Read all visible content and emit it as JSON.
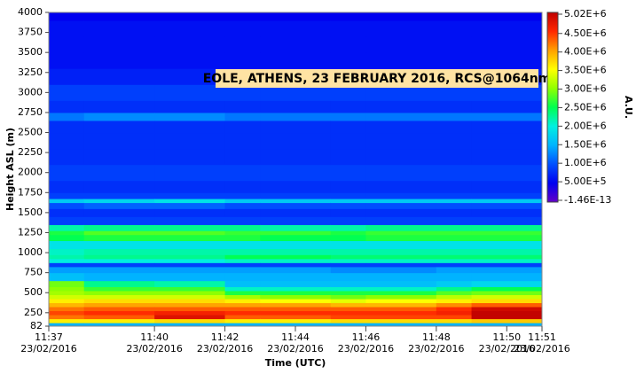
{
  "chart_data": {
    "type": "heatmap",
    "title": "EOLE, ATHENS, 23 FEBRUARY 2016, RCS@1064nm",
    "x_label": "Time (UTC)",
    "y_label": "Height ASL (m)",
    "colorbar_label": "A.U.",
    "bins": [
      "2016-02-23T11:37",
      "2016-02-23T11:38",
      "2016-02-23T11:40",
      "2016-02-23T11:42",
      "2016-02-23T11:43",
      "2016-02-23T11:45",
      "2016-02-23T11:46",
      "2016-02-23T11:48",
      "2016-02-23T11:49",
      "2016-02-23T11:51"
    ],
    "y": [
      100,
      150,
      200,
      250,
      300,
      350,
      400,
      450,
      500,
      550,
      600,
      700,
      800,
      850,
      900,
      950,
      1000,
      1100,
      1200,
      1250,
      1300,
      1400,
      1500,
      1600,
      1650,
      1700,
      1800,
      2000,
      2200,
      2400,
      2600,
      2700,
      2800,
      3000,
      3200,
      3400,
      3600,
      3800,
      4000
    ],
    "z": [
      [
        1500000,
        3600000,
        4200000,
        4400000,
        4200000,
        3900000,
        3600000,
        3300000,
        3100000,
        3000000,
        2900000,
        1600000,
        1400000,
        900000,
        2000000,
        2200000,
        2100000,
        1900000,
        2500000,
        2600000,
        2200000,
        900000,
        800000,
        1000000,
        1700000,
        900000,
        800000,
        900000,
        800000,
        800000,
        800000,
        1200000,
        800000,
        900000,
        700000,
        600000,
        600000,
        600000,
        500000
      ],
      [
        1500000,
        3600000,
        4300000,
        4500000,
        4300000,
        4000000,
        3700000,
        3300000,
        3000000,
        2700000,
        2300000,
        1500000,
        1400000,
        900000,
        2000000,
        2300000,
        2200000,
        1900000,
        2600000,
        2800000,
        2300000,
        900000,
        800000,
        1100000,
        1800000,
        900000,
        800000,
        900000,
        800000,
        800000,
        800000,
        1300000,
        800000,
        900000,
        700000,
        600000,
        600000,
        600000,
        500000
      ],
      [
        1500000,
        3700000,
        4800000,
        4600000,
        4300000,
        4000000,
        3700000,
        3300000,
        3000000,
        2700000,
        2200000,
        1500000,
        1400000,
        900000,
        2000000,
        2300000,
        2200000,
        1900000,
        2600000,
        2800000,
        2300000,
        900000,
        800000,
        1100000,
        1900000,
        900000,
        800000,
        900000,
        800000,
        800000,
        800000,
        1300000,
        800000,
        900000,
        700000,
        600000,
        600000,
        600000,
        500000
      ],
      [
        1500000,
        3600000,
        4300000,
        4500000,
        4300000,
        4000000,
        3600000,
        3100000,
        2600000,
        2100000,
        1600000,
        1500000,
        1400000,
        900000,
        2100000,
        2500000,
        2200000,
        1900000,
        2600000,
        2700000,
        2300000,
        900000,
        800000,
        1000000,
        1700000,
        900000,
        800000,
        900000,
        800000,
        800000,
        800000,
        1200000,
        800000,
        900000,
        700000,
        600000,
        600000,
        600000,
        500000
      ],
      [
        1500000,
        3600000,
        4300000,
        4500000,
        4300000,
        4000000,
        3500000,
        3000000,
        2600000,
        2100000,
        1600000,
        1500000,
        1400000,
        900000,
        2100000,
        2500000,
        2200000,
        1900000,
        2500000,
        2700000,
        2200000,
        900000,
        800000,
        1000000,
        1700000,
        900000,
        800000,
        900000,
        800000,
        800000,
        800000,
        1200000,
        800000,
        900000,
        700000,
        600000,
        600000,
        600000,
        500000
      ],
      [
        1500000,
        3700000,
        4400000,
        4500000,
        4300000,
        3900000,
        3400000,
        2900000,
        2600000,
        2100000,
        1600000,
        1500000,
        1300000,
        900000,
        2100000,
        2400000,
        2200000,
        1900000,
        2500000,
        2600000,
        2200000,
        900000,
        800000,
        1000000,
        1700000,
        900000,
        800000,
        900000,
        800000,
        800000,
        800000,
        1200000,
        800000,
        900000,
        700000,
        600000,
        600000,
        600000,
        500000
      ],
      [
        1500000,
        3700000,
        4400000,
        4500000,
        4300000,
        3900000,
        3500000,
        3000000,
        2600000,
        2100000,
        1600000,
        1500000,
        1300000,
        900000,
        2100000,
        2400000,
        2200000,
        1900000,
        2600000,
        2700000,
        2300000,
        900000,
        800000,
        1000000,
        1700000,
        900000,
        800000,
        900000,
        800000,
        800000,
        800000,
        1200000,
        800000,
        900000,
        700000,
        600000,
        600000,
        600000,
        500000
      ],
      [
        1500000,
        3700000,
        4400000,
        4600000,
        4500000,
        4100000,
        3600000,
        3200000,
        2800000,
        2300000,
        1700000,
        1500000,
        1400000,
        900000,
        2100000,
        2400000,
        2200000,
        1900000,
        2600000,
        2700000,
        2300000,
        900000,
        800000,
        1000000,
        1700000,
        900000,
        800000,
        900000,
        800000,
        800000,
        800000,
        1200000,
        800000,
        900000,
        700000,
        600000,
        600000,
        600000,
        500000
      ],
      [
        1500000,
        3800000,
        5000000,
        5000000,
        4900000,
        4300000,
        3700000,
        3300000,
        2900000,
        2500000,
        1800000,
        1500000,
        1400000,
        900000,
        2100000,
        2400000,
        2200000,
        1900000,
        2600000,
        2700000,
        2300000,
        900000,
        800000,
        1000000,
        1700000,
        900000,
        800000,
        900000,
        800000,
        800000,
        800000,
        1200000,
        800000,
        900000,
        700000,
        600000,
        600000,
        600000,
        500000
      ]
    ],
    "ylim": [
      82,
      4000
    ],
    "yticks": [
      82,
      250,
      500,
      750,
      1000,
      1250,
      1500,
      1750,
      2000,
      2250,
      2500,
      2750,
      3000,
      3250,
      3500,
      3750,
      4000
    ],
    "xlim": [
      "2016-02-23T11:37",
      "2016-02-23T11:51"
    ],
    "xticks": [
      {
        "value": "2016-02-23T11:37",
        "label": [
          "11:37",
          "23/02/2016"
        ]
      },
      {
        "value": "2016-02-23T11:40",
        "label": [
          "11:40",
          "23/02/2016"
        ]
      },
      {
        "value": "2016-02-23T11:42",
        "label": [
          "11:42",
          "23/02/2016"
        ]
      },
      {
        "value": "2016-02-23T11:44",
        "label": [
          "11:44",
          "23/02/2016"
        ]
      },
      {
        "value": "2016-02-23T11:46",
        "label": [
          "11:46",
          "23/02/2016"
        ]
      },
      {
        "value": "2016-02-23T11:48",
        "label": [
          "11:48",
          "23/02/2016"
        ]
      },
      {
        "value": "2016-02-23T11:50",
        "label": [
          "11:50",
          "23/02/2016"
        ]
      },
      {
        "value": "2016-02-23T11:51",
        "label": [
          "11:51",
          "23/02/2016"
        ]
      }
    ],
    "zlim": [
      -1.46e-13,
      5020000
    ],
    "zticks": [
      {
        "value": 5020000,
        "label": "5.02E+6"
      },
      {
        "value": 4500000,
        "label": "4.50E+6"
      },
      {
        "value": 4000000,
        "label": "4.00E+6"
      },
      {
        "value": 3500000,
        "label": "3.50E+6"
      },
      {
        "value": 3000000,
        "label": "3.00E+6"
      },
      {
        "value": 2500000,
        "label": "2.50E+6"
      },
      {
        "value": 2000000,
        "label": "2.00E+6"
      },
      {
        "value": 1500000,
        "label": "1.50E+6"
      },
      {
        "value": 1000000,
        "label": "1.00E+6"
      },
      {
        "value": 500000,
        "label": "5.00E+5"
      },
      {
        "value": -1.46e-13,
        "label": "-1.46E-13"
      }
    ],
    "colormap": [
      "#6400c8",
      "#0000f0",
      "#0050ff",
      "#00b4ff",
      "#00f0e0",
      "#00ff50",
      "#90ff00",
      "#ffff00",
      "#ffa000",
      "#ff2800",
      "#c00000"
    ]
  }
}
